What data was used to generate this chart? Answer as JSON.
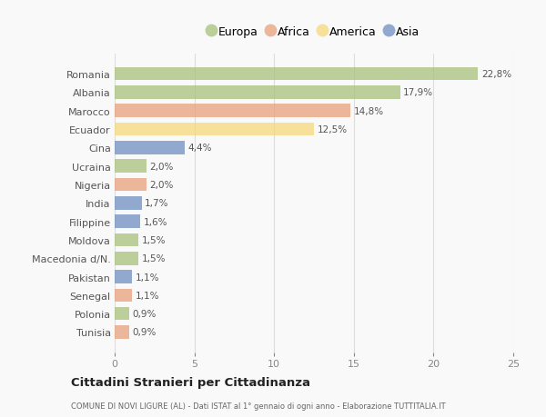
{
  "categories": [
    "Romania",
    "Albania",
    "Marocco",
    "Ecuador",
    "Cina",
    "Ucraina",
    "Nigeria",
    "India",
    "Filippine",
    "Moldova",
    "Macedonia d/N.",
    "Pakistan",
    "Senegal",
    "Polonia",
    "Tunisia"
  ],
  "values": [
    22.8,
    17.9,
    14.8,
    12.5,
    4.4,
    2.0,
    2.0,
    1.7,
    1.6,
    1.5,
    1.5,
    1.1,
    1.1,
    0.9,
    0.9
  ],
  "labels": [
    "22,8%",
    "17,9%",
    "14,8%",
    "12,5%",
    "4,4%",
    "2,0%",
    "2,0%",
    "1,7%",
    "1,6%",
    "1,5%",
    "1,5%",
    "1,1%",
    "1,1%",
    "0,9%",
    "0,9%"
  ],
  "colors": [
    "#a8c17c",
    "#a8c17c",
    "#e8a07a",
    "#f5d87a",
    "#6e8fc0",
    "#a8c17c",
    "#e8a07a",
    "#6e8fc0",
    "#6e8fc0",
    "#a8c17c",
    "#a8c17c",
    "#6e8fc0",
    "#e8a07a",
    "#a8c17c",
    "#e8a07a"
  ],
  "legend_labels": [
    "Europa",
    "Africa",
    "America",
    "Asia"
  ],
  "legend_colors": [
    "#a8c17c",
    "#e8a07a",
    "#f5d87a",
    "#6e8fc0"
  ],
  "title": "Cittadini Stranieri per Cittadinanza",
  "subtitle": "COMUNE DI NOVI LIGURE (AL) - Dati ISTAT al 1° gennaio di ogni anno - Elaborazione TUTTITALIA.IT",
  "xlim": [
    0,
    25
  ],
  "xticks": [
    0,
    5,
    10,
    15,
    20,
    25
  ],
  "background_color": "#f9f9f9",
  "bar_alpha": 0.75
}
